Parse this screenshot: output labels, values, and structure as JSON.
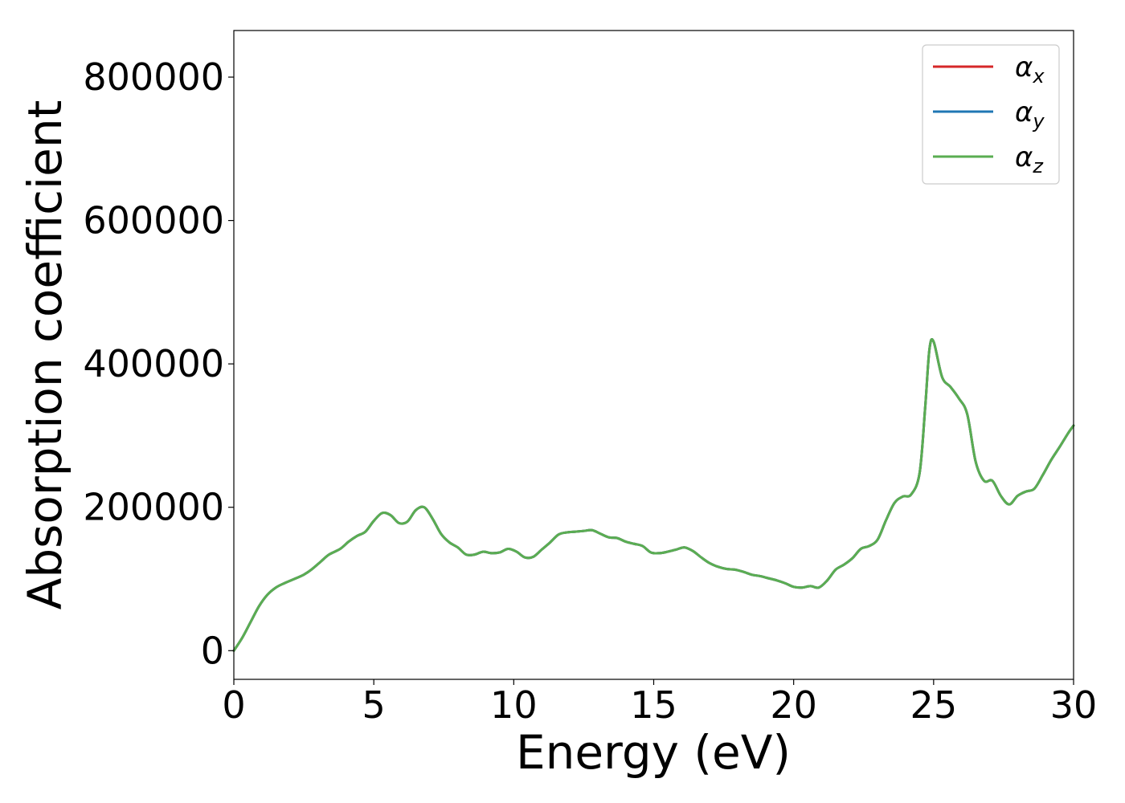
{
  "chart_data": {
    "type": "line",
    "title": "",
    "xlabel": "Energy (eV)",
    "ylabel": "Absorption coefficient",
    "xlim": [
      0,
      30
    ],
    "ylim": [
      -40000,
      865000
    ],
    "xticks": [
      0,
      5,
      10,
      15,
      20,
      25,
      30
    ],
    "yticks": [
      0,
      200000,
      400000,
      600000,
      800000
    ],
    "xtick_labels": [
      "0",
      "5",
      "10",
      "15",
      "20",
      "25",
      "30"
    ],
    "ytick_labels": [
      "0",
      "200000",
      "400000",
      "600000",
      "800000"
    ],
    "grid": false,
    "legend_position": "top-right",
    "series": [
      {
        "name": "α_x",
        "legend_symbol": "α",
        "legend_sub": "x",
        "color": "#d62728",
        "x": [
          0,
          0.3,
          0.6,
          0.9,
          1.2,
          1.5,
          1.8,
          2.1,
          2.5,
          2.8,
          3.1,
          3.4,
          3.8,
          4.1,
          4.4,
          4.7,
          5.0,
          5.3,
          5.6,
          5.9,
          6.2,
          6.5,
          6.8,
          7.1,
          7.4,
          7.7,
          8.0,
          8.3,
          8.6,
          8.9,
          9.2,
          9.5,
          9.8,
          10.1,
          10.4,
          10.7,
          11.0,
          11.3,
          11.6,
          11.9,
          12.2,
          12.5,
          12.8,
          13.1,
          13.4,
          13.7,
          14.0,
          14.3,
          14.6,
          14.9,
          15.2,
          15.5,
          15.8,
          16.1,
          16.4,
          16.7,
          17.0,
          17.3,
          17.6,
          17.9,
          18.2,
          18.5,
          18.8,
          19.1,
          19.4,
          19.7,
          20.0,
          20.3,
          20.6,
          20.9,
          21.2,
          21.5,
          21.8,
          22.1,
          22.4,
          22.7,
          23.0,
          23.3,
          23.6,
          23.9,
          24.2,
          24.5,
          24.7,
          24.85,
          25.0,
          25.3,
          25.6,
          25.9,
          26.2,
          26.5,
          26.8,
          27.1,
          27.4,
          27.7,
          28.0,
          28.3,
          28.6,
          28.9,
          29.2,
          29.5,
          29.8,
          30.0
        ],
        "values": [
          0,
          18000,
          40000,
          62000,
          78000,
          88000,
          94000,
          99000,
          106000,
          114000,
          124000,
          134000,
          142000,
          152000,
          160000,
          166000,
          181000,
          192000,
          189000,
          178000,
          180000,
          196000,
          200000,
          184000,
          163000,
          151000,
          144000,
          134000,
          134000,
          138000,
          136000,
          137000,
          142000,
          138000,
          130000,
          131000,
          141000,
          151000,
          162000,
          165000,
          166000,
          167000,
          168000,
          163000,
          158000,
          157000,
          152000,
          149000,
          146000,
          137000,
          136000,
          138000,
          141000,
          144000,
          139000,
          130000,
          122000,
          117000,
          114000,
          113000,
          110000,
          106000,
          104000,
          101000,
          98000,
          94000,
          89000,
          88000,
          90000,
          88000,
          98000,
          113000,
          120000,
          129000,
          142000,
          146000,
          155000,
          182000,
          206000,
          215000,
          218000,
          248000,
          340000,
          420000,
          431000,
          382000,
          368000,
          352000,
          330000,
          264000,
          237000,
          237000,
          216000,
          204000,
          216000,
          222000,
          226000,
          245000,
          266000,
          284000,
          303000,
          314000
        ]
      },
      {
        "name": "α_y",
        "legend_symbol": "α",
        "legend_sub": "y",
        "color": "#1f77b4",
        "x": [
          0,
          0.3,
          0.6,
          0.9,
          1.2,
          1.5,
          1.8,
          2.1,
          2.5,
          2.8,
          3.1,
          3.4,
          3.8,
          4.1,
          4.4,
          4.7,
          5.0,
          5.3,
          5.6,
          5.9,
          6.2,
          6.5,
          6.8,
          7.1,
          7.4,
          7.7,
          8.0,
          8.3,
          8.6,
          8.9,
          9.2,
          9.5,
          9.8,
          10.1,
          10.4,
          10.7,
          11.0,
          11.3,
          11.6,
          11.9,
          12.2,
          12.5,
          12.8,
          13.1,
          13.4,
          13.7,
          14.0,
          14.3,
          14.6,
          14.9,
          15.2,
          15.5,
          15.8,
          16.1,
          16.4,
          16.7,
          17.0,
          17.3,
          17.6,
          17.9,
          18.2,
          18.5,
          18.8,
          19.1,
          19.4,
          19.7,
          20.0,
          20.3,
          20.6,
          20.9,
          21.2,
          21.5,
          21.8,
          22.1,
          22.4,
          22.7,
          23.0,
          23.3,
          23.6,
          23.9,
          24.2,
          24.5,
          24.7,
          24.85,
          25.0,
          25.3,
          25.6,
          25.9,
          26.2,
          26.5,
          26.8,
          27.1,
          27.4,
          27.7,
          28.0,
          28.3,
          28.6,
          28.9,
          29.2,
          29.5,
          29.8,
          30.0
        ],
        "values": [
          0,
          18000,
          40000,
          62000,
          78000,
          88000,
          94000,
          99000,
          106000,
          114000,
          124000,
          134000,
          142000,
          152000,
          160000,
          166000,
          181000,
          192000,
          189000,
          178000,
          180000,
          196000,
          200000,
          184000,
          163000,
          151000,
          144000,
          134000,
          134000,
          138000,
          136000,
          137000,
          142000,
          138000,
          130000,
          131000,
          141000,
          151000,
          162000,
          165000,
          166000,
          167000,
          168000,
          163000,
          158000,
          157000,
          152000,
          149000,
          146000,
          137000,
          136000,
          138000,
          141000,
          144000,
          139000,
          130000,
          122000,
          117000,
          114000,
          113000,
          110000,
          106000,
          104000,
          101000,
          98000,
          94000,
          89000,
          88000,
          90000,
          88000,
          98000,
          113000,
          120000,
          129000,
          142000,
          146000,
          155000,
          182000,
          206000,
          215000,
          218000,
          248000,
          340000,
          420000,
          431000,
          382000,
          368000,
          352000,
          330000,
          264000,
          237000,
          237000,
          216000,
          204000,
          216000,
          222000,
          226000,
          245000,
          266000,
          284000,
          303000,
          314000
        ]
      },
      {
        "name": "α_z",
        "legend_symbol": "α",
        "legend_sub": "z",
        "color": "#5aad52",
        "x": [
          0,
          0.3,
          0.6,
          0.9,
          1.2,
          1.5,
          1.8,
          2.1,
          2.5,
          2.8,
          3.1,
          3.4,
          3.8,
          4.1,
          4.4,
          4.7,
          5.0,
          5.3,
          5.6,
          5.9,
          6.2,
          6.5,
          6.8,
          7.1,
          7.4,
          7.7,
          8.0,
          8.3,
          8.6,
          8.9,
          9.2,
          9.5,
          9.8,
          10.1,
          10.4,
          10.7,
          11.0,
          11.3,
          11.6,
          11.9,
          12.2,
          12.5,
          12.8,
          13.1,
          13.4,
          13.7,
          14.0,
          14.3,
          14.6,
          14.9,
          15.2,
          15.5,
          15.8,
          16.1,
          16.4,
          16.7,
          17.0,
          17.3,
          17.6,
          17.9,
          18.2,
          18.5,
          18.8,
          19.1,
          19.4,
          19.7,
          20.0,
          20.3,
          20.6,
          20.9,
          21.2,
          21.5,
          21.8,
          22.1,
          22.4,
          22.7,
          23.0,
          23.3,
          23.6,
          23.9,
          24.2,
          24.5,
          24.7,
          24.85,
          25.0,
          25.3,
          25.6,
          25.9,
          26.2,
          26.5,
          26.8,
          27.1,
          27.4,
          27.7,
          28.0,
          28.3,
          28.6,
          28.9,
          29.2,
          29.5,
          29.8,
          30.0
        ],
        "values": [
          0,
          18000,
          40000,
          62000,
          78000,
          88000,
          94000,
          99000,
          106000,
          114000,
          124000,
          134000,
          142000,
          152000,
          160000,
          166000,
          181000,
          192000,
          189000,
          178000,
          180000,
          196000,
          200000,
          184000,
          163000,
          151000,
          144000,
          134000,
          134000,
          138000,
          136000,
          137000,
          142000,
          138000,
          130000,
          131000,
          141000,
          151000,
          162000,
          165000,
          166000,
          167000,
          168000,
          163000,
          158000,
          157000,
          152000,
          149000,
          146000,
          137000,
          136000,
          138000,
          141000,
          144000,
          139000,
          130000,
          122000,
          117000,
          114000,
          113000,
          110000,
          106000,
          104000,
          101000,
          98000,
          94000,
          89000,
          88000,
          90000,
          88000,
          98000,
          113000,
          120000,
          129000,
          142000,
          146000,
          155000,
          182000,
          206000,
          215000,
          218000,
          248000,
          340000,
          420000,
          431000,
          382000,
          368000,
          352000,
          330000,
          264000,
          237000,
          237000,
          216000,
          204000,
          216000,
          222000,
          226000,
          245000,
          266000,
          284000,
          303000,
          314000
        ]
      }
    ]
  }
}
